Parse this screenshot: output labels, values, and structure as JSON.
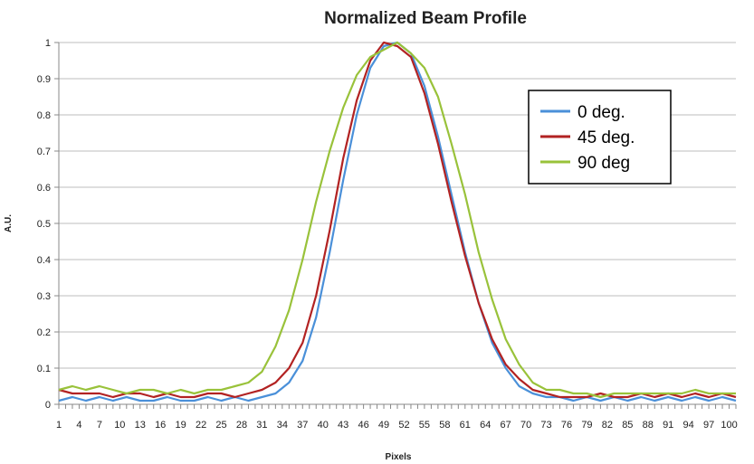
{
  "chart_data": {
    "type": "line",
    "title": "Normalized Beam Profile",
    "xlabel": "Pixels",
    "ylabel": "A.U.",
    "xlim": [
      1,
      101
    ],
    "ylim": [
      0,
      1
    ],
    "y_ticks": [
      0,
      0.1,
      0.2,
      0.3,
      0.4,
      0.5,
      0.6,
      0.7,
      0.8,
      0.9,
      1
    ],
    "x_tick_labels": [
      "1",
      "4",
      "7",
      "10",
      "13",
      "16",
      "19",
      "22",
      "25",
      "28",
      "31",
      "34",
      "37",
      "40",
      "43",
      "46",
      "49",
      "52",
      "55",
      "58",
      "61",
      "64",
      "67",
      "70",
      "73",
      "76",
      "79",
      "82",
      "85",
      "88",
      "91",
      "94",
      "97",
      "100"
    ],
    "grid": true,
    "legend_position": "top-right",
    "x": [
      1,
      3,
      5,
      7,
      9,
      11,
      13,
      15,
      17,
      19,
      21,
      23,
      25,
      27,
      29,
      31,
      33,
      35,
      37,
      39,
      41,
      43,
      45,
      47,
      49,
      51,
      53,
      55,
      57,
      59,
      61,
      63,
      65,
      67,
      69,
      71,
      73,
      75,
      77,
      79,
      81,
      83,
      85,
      87,
      89,
      91,
      93,
      95,
      97,
      99,
      101
    ],
    "series": [
      {
        "name": "0 deg.",
        "color": "#4a90d9",
        "values": [
          0.01,
          0.02,
          0.01,
          0.02,
          0.01,
          0.02,
          0.01,
          0.01,
          0.02,
          0.01,
          0.01,
          0.02,
          0.01,
          0.02,
          0.01,
          0.02,
          0.03,
          0.06,
          0.12,
          0.24,
          0.42,
          0.62,
          0.8,
          0.93,
          0.99,
          1.0,
          0.97,
          0.88,
          0.74,
          0.58,
          0.42,
          0.28,
          0.17,
          0.1,
          0.05,
          0.03,
          0.02,
          0.02,
          0.01,
          0.02,
          0.01,
          0.02,
          0.01,
          0.02,
          0.01,
          0.02,
          0.01,
          0.02,
          0.01,
          0.02,
          0.01
        ]
      },
      {
        "name": "45 deg.",
        "color": "#b22222",
        "values": [
          0.04,
          0.03,
          0.03,
          0.03,
          0.02,
          0.03,
          0.03,
          0.02,
          0.03,
          0.02,
          0.02,
          0.03,
          0.03,
          0.02,
          0.03,
          0.04,
          0.06,
          0.1,
          0.17,
          0.3,
          0.48,
          0.68,
          0.84,
          0.95,
          1.0,
          0.99,
          0.96,
          0.86,
          0.72,
          0.56,
          0.41,
          0.28,
          0.18,
          0.11,
          0.07,
          0.04,
          0.03,
          0.02,
          0.02,
          0.02,
          0.03,
          0.02,
          0.02,
          0.03,
          0.02,
          0.03,
          0.02,
          0.03,
          0.02,
          0.03,
          0.02
        ]
      },
      {
        "name": "90 deg",
        "color": "#99c23a",
        "values": [
          0.04,
          0.05,
          0.04,
          0.05,
          0.04,
          0.03,
          0.04,
          0.04,
          0.03,
          0.04,
          0.03,
          0.04,
          0.04,
          0.05,
          0.06,
          0.09,
          0.16,
          0.26,
          0.4,
          0.56,
          0.7,
          0.82,
          0.91,
          0.96,
          0.98,
          1.0,
          0.97,
          0.93,
          0.85,
          0.72,
          0.58,
          0.42,
          0.29,
          0.18,
          0.11,
          0.06,
          0.04,
          0.04,
          0.03,
          0.03,
          0.02,
          0.03,
          0.03,
          0.03,
          0.03,
          0.03,
          0.03,
          0.04,
          0.03,
          0.03,
          0.03
        ]
      }
    ]
  }
}
